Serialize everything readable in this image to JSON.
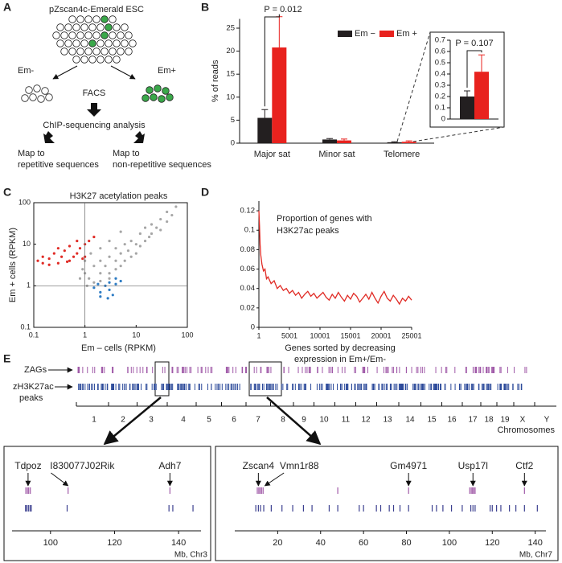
{
  "panel_labels": [
    "A",
    "B",
    "C",
    "D",
    "E"
  ],
  "diagram": {
    "title": "pZscan4c-Emerald ESC",
    "left": "Em-",
    "right": "Em+",
    "sort": "FACS",
    "analysis": "ChIP-sequencing analysis",
    "map_left": [
      "Map to",
      "repetitive sequences"
    ],
    "map_right": [
      "Map to",
      "non-repetitive sequences"
    ]
  },
  "genome": {
    "zags_label": "ZAGs",
    "peaks_label": [
      "zH3K27ac",
      "peaks"
    ],
    "chromosomes": [
      "1",
      "2",
      "3",
      "4",
      "5",
      "6",
      "7",
      "8",
      "9",
      "10",
      "11",
      "12",
      "13",
      "14",
      "15",
      "16",
      "17",
      "18",
      "19",
      "X",
      "Y"
    ],
    "axis_label": "Chromosomes"
  },
  "chart_data": [
    {
      "type": "bar",
      "ylabel": "% of reads",
      "categories": [
        "Major sat",
        "Minor sat",
        "Telomere"
      ],
      "series": [
        {
          "name": "Em −",
          "color": "#231f20",
          "values": [
            5.5,
            0.8,
            0.2
          ],
          "errors": [
            1.8,
            0.2,
            0.1
          ]
        },
        {
          "name": "Em +",
          "color": "#e8221e",
          "values": [
            20.8,
            0.6,
            0.3
          ],
          "errors": [
            6.7,
            0.3,
            0.2
          ]
        }
      ],
      "ylim": [
        0,
        27
      ],
      "yticks": [
        0,
        5,
        10,
        15,
        20,
        25
      ],
      "annotation": "P = 0.012",
      "legend": "upper right"
    },
    {
      "type": "bar",
      "categories": [
        null
      ],
      "series": [
        {
          "color": "#231f20",
          "values": [
            0.2
          ],
          "errors": [
            0.05
          ]
        },
        {
          "color": "#e8221e",
          "values": [
            0.42
          ],
          "errors": [
            0.15
          ]
        }
      ],
      "ylim": [
        0,
        0.7
      ],
      "yticks": [
        0,
        0.1,
        0.2,
        0.3,
        0.4,
        0.5,
        0.6,
        0.7
      ],
      "annotation": "P = 0.107"
    },
    {
      "type": "scatter",
      "title": "H3K27 acetylation peaks",
      "xlabel": "Em – cells (RPKM)",
      "ylabel": "Em + cells (RPKM)",
      "log_scale": true,
      "xlim": [
        0.1,
        100
      ],
      "ylim": [
        0.1,
        100
      ],
      "xticks": [
        0.1,
        1,
        10,
        100
      ],
      "yticks": [
        0.1,
        1,
        10,
        100
      ],
      "reference_lines": [
        1
      ],
      "series": [
        {
          "color": "#a6a6a6",
          "x": [
            1,
            1.2,
            1.5,
            1.5,
            2,
            2,
            2,
            2.5,
            3,
            3,
            3,
            4,
            4,
            4,
            5,
            5,
            6,
            6,
            7,
            8,
            8,
            10,
            10,
            12,
            12,
            15,
            15,
            18,
            20,
            20,
            25,
            30,
            30,
            40,
            40,
            50,
            60,
            1,
            0.9,
            1.3,
            2,
            3,
            5,
            0.8,
            1.1
          ],
          "y": [
            2,
            1.5,
            3,
            1.2,
            2,
            4,
            1.3,
            3,
            2,
            5,
            1.5,
            4,
            8,
            2.5,
            3,
            6,
            10,
            4,
            7,
            5,
            12,
            10,
            6,
            18,
            9,
            12,
            25,
            15,
            30,
            18,
            25,
            40,
            22,
            35,
            60,
            50,
            80,
            4,
            2.5,
            6,
            8,
            12,
            20,
            1.5,
            1
          ]
        },
        {
          "color": "#e02b25",
          "x": [
            0.12,
            0.15,
            0.2,
            0.25,
            0.3,
            0.35,
            0.4,
            0.5,
            0.5,
            0.6,
            0.7,
            0.8,
            1,
            1,
            1.2,
            0.3,
            0.2,
            0.45,
            0.9,
            0.7,
            0.15,
            1.5
          ],
          "y": [
            4,
            5,
            4.5,
            6,
            3.5,
            5,
            7,
            4,
            9,
            5,
            6,
            8,
            10,
            5,
            12,
            8,
            3.2,
            3.8,
            4.5,
            12,
            3.5,
            15
          ]
        },
        {
          "color": "#2e7cc4",
          "x": [
            1.5,
            2,
            2,
            2.5,
            3,
            3,
            3.5,
            4,
            4,
            5,
            2.8,
            1.8
          ],
          "y": [
            0.9,
            0.7,
            0.55,
            1,
            0.8,
            1.2,
            0.6,
            1.1,
            1.5,
            1.3,
            0.5,
            1.1
          ]
        }
      ]
    },
    {
      "type": "line",
      "title": [
        "Proportion of genes with",
        "H3K27ac peaks"
      ],
      "xlabel": [
        "Genes sorted by decreasing",
        "expression in Em+/Em-"
      ],
      "color": "#e02b25",
      "x": [
        1,
        100,
        200,
        300,
        400,
        500,
        750,
        1000,
        1250,
        1500,
        2000,
        2500,
        3000,
        3500,
        4000,
        4500,
        5000,
        5500,
        6000,
        6500,
        7000,
        7500,
        8000,
        8500,
        9000,
        9500,
        10000,
        10500,
        11000,
        11500,
        12000,
        12500,
        13000,
        13500,
        14000,
        14500,
        15000,
        15500,
        16000,
        16500,
        17000,
        17500,
        18000,
        18500,
        19000,
        19500,
        20000,
        20500,
        21000,
        21500,
        22000,
        22500,
        23000,
        23500,
        24000,
        24500,
        25000
      ],
      "values": [
        0.12,
        0.105,
        0.085,
        0.075,
        0.07,
        0.065,
        0.058,
        0.06,
        0.05,
        0.052,
        0.045,
        0.048,
        0.04,
        0.043,
        0.038,
        0.04,
        0.035,
        0.038,
        0.033,
        0.036,
        0.03,
        0.034,
        0.037,
        0.032,
        0.035,
        0.03,
        0.033,
        0.036,
        0.031,
        0.028,
        0.034,
        0.03,
        0.036,
        0.031,
        0.027,
        0.033,
        0.029,
        0.035,
        0.032,
        0.026,
        0.03,
        0.034,
        0.029,
        0.036,
        0.03,
        0.025,
        0.032,
        0.037,
        0.03,
        0.027,
        0.033,
        0.029,
        0.024,
        0.03,
        0.027,
        0.032,
        0.028
      ],
      "xlim": [
        1,
        25001
      ],
      "xticks": [
        1,
        5001,
        10001,
        15001,
        20001,
        25001
      ],
      "ylim": [
        0,
        0.13
      ],
      "yticks": [
        0,
        0.02,
        0.04,
        0.06,
        0.08,
        0.1,
        0.12
      ]
    },
    {
      "type": "track",
      "xlabel": "Mb, Chr3",
      "xlim": [
        88,
        147
      ],
      "xticks": [
        100,
        120,
        140
      ],
      "series": [
        {
          "color": "#a05aa8",
          "x": [
            92.3,
            92.8,
            93.2,
            93.7,
            105.5,
            137.3
          ]
        },
        {
          "color": "#3b3f8f",
          "x": [
            92.2,
            92.6,
            93.1,
            93.6,
            94,
            105.2,
            137,
            138.2,
            144.5
          ]
        }
      ],
      "annotations": [
        {
          "text": "Tdpoz",
          "x": 93
        },
        {
          "text": "I830077J02Rik",
          "x": 105.5
        },
        {
          "text": "Adh7",
          "x": 137.3
        }
      ]
    },
    {
      "type": "track",
      "xlabel": "Mb, Chr7",
      "xlim": [
        0,
        145
      ],
      "xticks": [
        20,
        40,
        60,
        80,
        100,
        120,
        140
      ],
      "series": [
        {
          "color": "#a05aa8",
          "x": [
            10.5,
            11.2,
            11.8,
            12.5,
            13.2,
            48,
            81,
            109.5,
            110.2,
            110.8,
            111.4,
            112,
            135
          ]
        },
        {
          "color": "#3b3f8f",
          "x": [
            9.8,
            11,
            12,
            13.5,
            17,
            22,
            27,
            32,
            36,
            44,
            48,
            58,
            60,
            66,
            68,
            72,
            74,
            77,
            81,
            92,
            94,
            97,
            101,
            106,
            110,
            111,
            112,
            119,
            120,
            122,
            124,
            128,
            131,
            135,
            141
          ]
        }
      ],
      "annotations": [
        {
          "text": "Zscan4",
          "x": 11
        },
        {
          "text": "Vmn1r88",
          "x": 14
        },
        {
          "text": "Gm4971",
          "x": 81
        },
        {
          "text": "Usp17l",
          "x": 111
        },
        {
          "text": "Ctf2",
          "x": 135
        }
      ]
    }
  ]
}
